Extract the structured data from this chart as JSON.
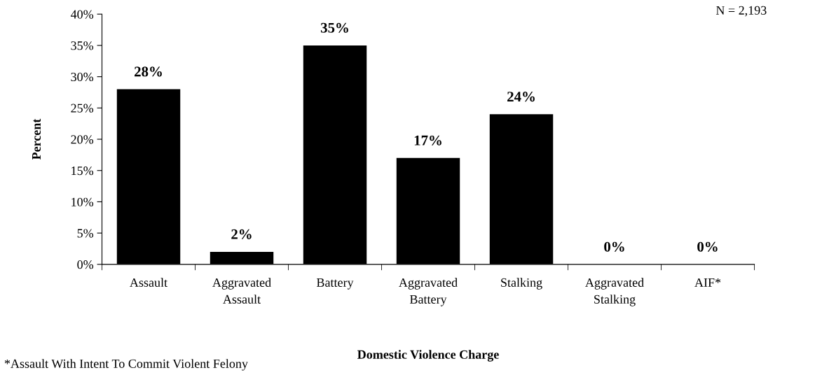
{
  "chart_data": {
    "type": "bar",
    "xlabel": "Domestic Violence Charge",
    "ylabel": "Percent",
    "categories": [
      "Assault",
      "Aggravated\nAssault",
      "Battery",
      "Aggravated\nBattery",
      "Stalking",
      "Aggravated\nStalking",
      "AIF*"
    ],
    "values": [
      28,
      2,
      35,
      17,
      24,
      0,
      0
    ],
    "color": "#000000",
    "value_labels": [
      "28%",
      "2%",
      "35%",
      "17%",
      "24%",
      "0%",
      "0%"
    ],
    "ylim": [
      0,
      40
    ],
    "yticks": [
      {
        "value": 0,
        "label": "0%"
      },
      {
        "value": 5,
        "label": "5%"
      },
      {
        "value": 10,
        "label": "10%"
      },
      {
        "value": 15,
        "label": "15%"
      },
      {
        "value": 20,
        "label": "20%"
      },
      {
        "value": 25,
        "label": "25%"
      },
      {
        "value": 30,
        "label": "30%"
      },
      {
        "value": 35,
        "label": "35%"
      },
      {
        "value": 40,
        "label": "40%"
      }
    ],
    "grid": false,
    "legend": false,
    "annotations": [
      "N = 2,193",
      "*Assault With Intent To Commit Violent Felony"
    ]
  }
}
